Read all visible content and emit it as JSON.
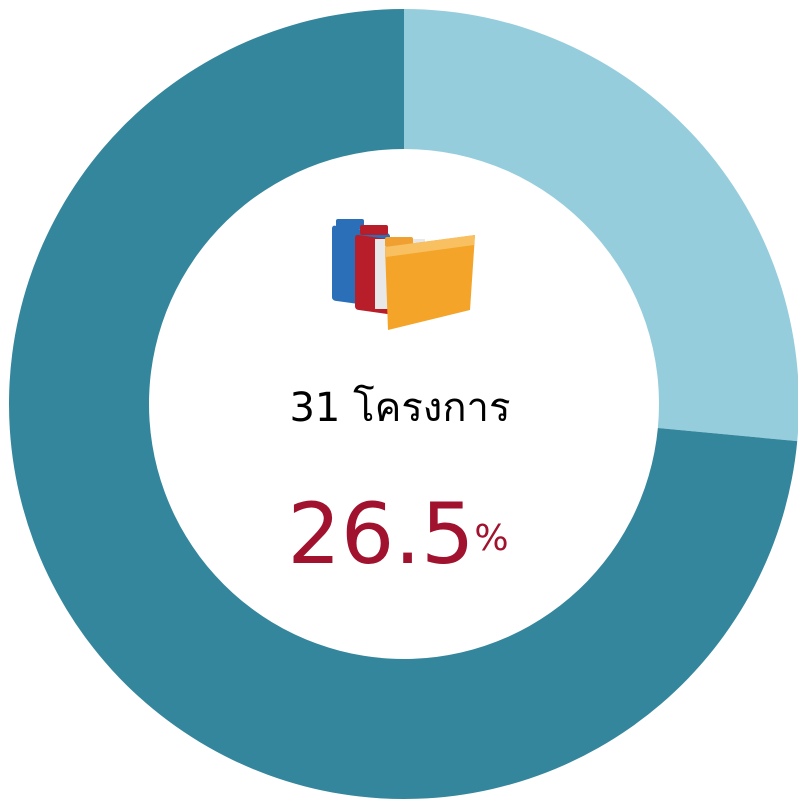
{
  "chart_data": {
    "type": "donut",
    "values": [
      26.5,
      73.5
    ],
    "colors": [
      "#96cddc",
      "#34869c"
    ],
    "value_labels": [
      "26.5%",
      null
    ],
    "value_label_color": "#a0122e",
    "center_text": "31 โครงการ"
  }
}
